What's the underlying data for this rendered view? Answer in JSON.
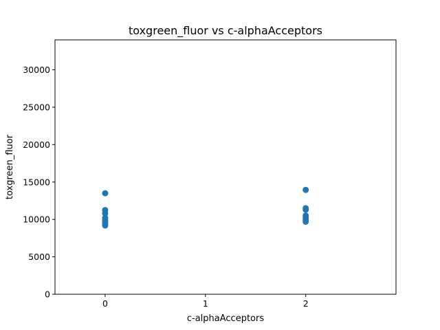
{
  "chart_data": {
    "type": "scatter",
    "title": "toxgreen_fluor vs c-alphaAcceptors",
    "xlabel": "c-alphaAcceptors",
    "ylabel": "toxgreen_fluor",
    "xlim": [
      -0.5,
      2.9
    ],
    "ylim": [
      0,
      34000
    ],
    "xticks": [
      0,
      1,
      2
    ],
    "yticks": [
      0,
      5000,
      10000,
      15000,
      20000,
      25000,
      30000
    ],
    "grid": false,
    "color": "#1f77b4",
    "series": [
      {
        "x": [
          0,
          0,
          0,
          0,
          0,
          0,
          0,
          0,
          2,
          2,
          2,
          2,
          2,
          2,
          2
        ],
        "y": [
          13500,
          11250,
          10800,
          10200,
          9900,
          9600,
          9350,
          9200,
          13950,
          11500,
          11300,
          10500,
          10200,
          9900,
          9700
        ]
      }
    ]
  }
}
